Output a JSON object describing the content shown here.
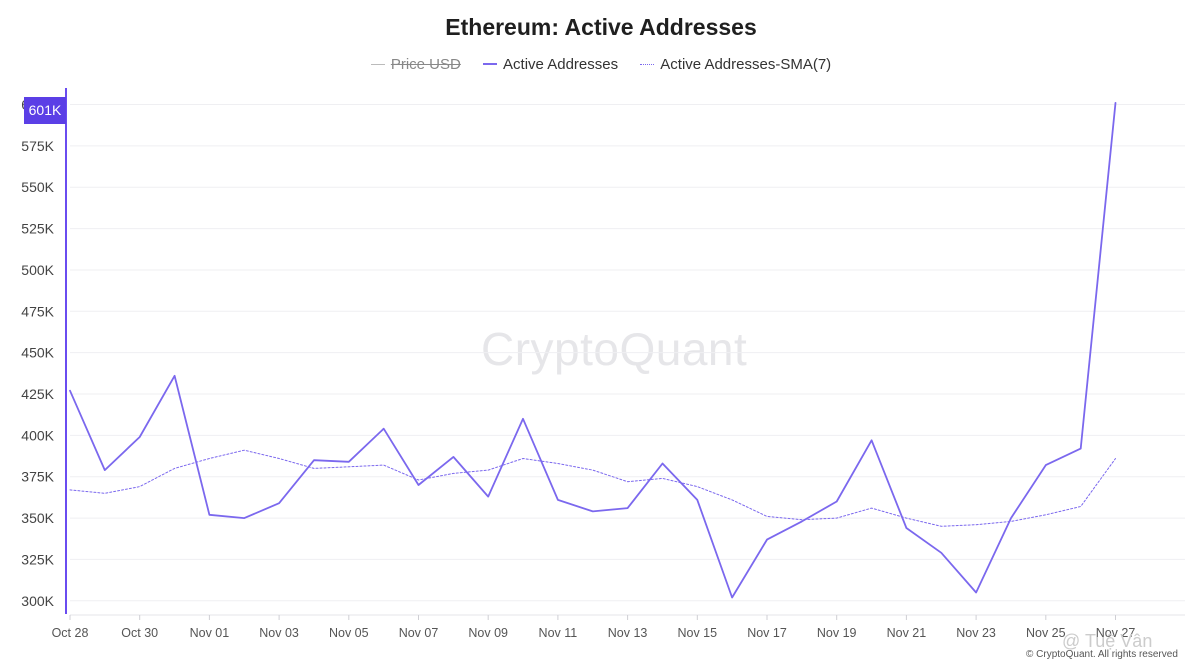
{
  "title": "Ethereum: Active Addresses",
  "legend": [
    {
      "label": "Price USD",
      "state": "hidden"
    },
    {
      "label": "Active Addresses",
      "state": "visible"
    },
    {
      "label": "Active Addresses-SMA(7)",
      "state": "visible"
    }
  ],
  "watermark": "CryptoQuant",
  "copyright": "© CryptoQuant. All rights reserved",
  "overlay_user": "@ Tuệ Vân",
  "last_value_badge": "601K",
  "colors": {
    "series": "#7b68ee",
    "axis": "#6a4cf0",
    "badge": "#5b3fe6",
    "grid": "#efeff2",
    "hidden_legend": "#bbbbbb"
  },
  "chart_data": {
    "type": "line",
    "title": "Ethereum: Active Addresses",
    "x": [
      "2024-10-28",
      "2024-10-29",
      "2024-10-30",
      "2024-10-31",
      "2024-11-01",
      "2024-11-02",
      "2024-11-03",
      "2024-11-04",
      "2024-11-05",
      "2024-11-06",
      "2024-11-07",
      "2024-11-08",
      "2024-11-09",
      "2024-11-10",
      "2024-11-11",
      "2024-11-12",
      "2024-11-13",
      "2024-11-14",
      "2024-11-15",
      "2024-11-16",
      "2024-11-17",
      "2024-11-18",
      "2024-11-19",
      "2024-11-20",
      "2024-11-21",
      "2024-11-22",
      "2024-11-23",
      "2024-11-24",
      "2024-11-25",
      "2024-11-26",
      "2024-11-27"
    ],
    "x_tick_labels": [
      "Oct 28",
      "Oct 30",
      "Nov 01",
      "Nov 03",
      "Nov 05",
      "Nov 07",
      "Nov 09",
      "Nov 11",
      "Nov 13",
      "Nov 15",
      "Nov 17",
      "Nov 19",
      "Nov 21",
      "Nov 23",
      "Nov 25",
      "Nov 27"
    ],
    "y_tick_labels": [
      "300K",
      "325K",
      "350K",
      "375K",
      "400K",
      "425K",
      "450K",
      "475K",
      "500K",
      "525K",
      "550K",
      "575K",
      "600K"
    ],
    "ylim": [
      292000,
      610000
    ],
    "grid": true,
    "legend_position": "top-center",
    "series": [
      {
        "name": "Active Addresses",
        "style": "solid",
        "values": [
          427000,
          379000,
          399000,
          436000,
          352000,
          350000,
          359000,
          385000,
          384000,
          404000,
          370000,
          387000,
          363000,
          410000,
          361000,
          354000,
          356000,
          383000,
          361000,
          302000,
          337000,
          348000,
          360000,
          397000,
          344000,
          329000,
          305000,
          350000,
          382000,
          392000,
          601000
        ]
      },
      {
        "name": "Active Addresses-SMA(7)",
        "style": "dotted",
        "values": [
          367000,
          365000,
          369000,
          380000,
          386000,
          391000,
          386000,
          380000,
          381000,
          382000,
          373000,
          377000,
          379000,
          386000,
          383000,
          379000,
          372000,
          374000,
          369000,
          361000,
          351000,
          349000,
          350000,
          356000,
          350000,
          345000,
          346000,
          348000,
          352000,
          357000,
          386000
        ]
      }
    ]
  }
}
